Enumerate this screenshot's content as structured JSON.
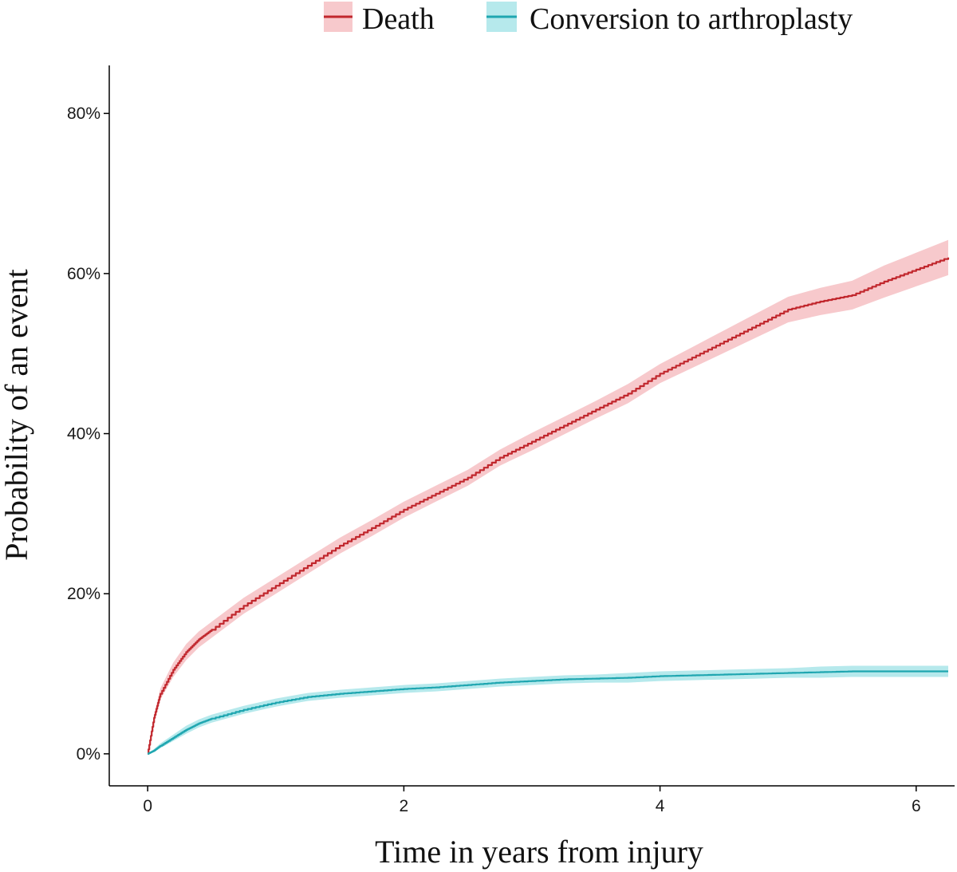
{
  "chart_data": {
    "type": "line",
    "title": "",
    "xlabel": "Time in years from injury",
    "ylabel": "Probability of an event",
    "xlim": [
      -0.3,
      6.3
    ],
    "ylim": [
      -4,
      86
    ],
    "x_ticks": [
      0,
      2,
      4,
      6
    ],
    "x_tick_labels": [
      "0",
      "2",
      "4",
      "6"
    ],
    "y_ticks": [
      0,
      20,
      40,
      60,
      80
    ],
    "y_tick_labels": [
      "0%",
      "20%",
      "40%",
      "60%",
      "80%"
    ],
    "grid": false,
    "legend_position": "top",
    "series": [
      {
        "name": "Death",
        "color": "#c1272d",
        "band_color": "#f7c9cc",
        "x": [
          0,
          0.05,
          0.1,
          0.2,
          0.3,
          0.4,
          0.5,
          0.75,
          1.0,
          1.25,
          1.5,
          1.75,
          2.0,
          2.25,
          2.5,
          2.75,
          3.0,
          3.25,
          3.5,
          3.75,
          4.0,
          4.25,
          4.5,
          4.75,
          5.0,
          5.25,
          5.5,
          5.75,
          6.0,
          6.25
        ],
        "y": [
          0,
          4.5,
          7.5,
          10.5,
          12.7,
          14.3,
          15.5,
          18.5,
          21.0,
          23.5,
          26.0,
          28.2,
          30.5,
          32.5,
          34.5,
          37.0,
          39.0,
          41.0,
          43.0,
          45.0,
          47.5,
          49.5,
          51.5,
          53.5,
          55.5,
          56.5,
          57.3,
          59.0,
          60.5,
          62.0
        ],
        "band": [
          0,
          0.5,
          0.7,
          0.9,
          1.0,
          1.0,
          1.0,
          1.0,
          1.0,
          1.0,
          1.0,
          1.0,
          1.0,
          1.0,
          1.0,
          1.0,
          1.1,
          1.1,
          1.1,
          1.2,
          1.2,
          1.3,
          1.4,
          1.5,
          1.6,
          1.7,
          1.8,
          2.0,
          2.1,
          2.2
        ]
      },
      {
        "name": "Conversion to arthroplasty",
        "color": "#1fa6b0",
        "band_color": "#b6e9ec",
        "x": [
          0,
          0.05,
          0.1,
          0.2,
          0.3,
          0.4,
          0.5,
          0.75,
          1.0,
          1.25,
          1.5,
          1.75,
          2.0,
          2.25,
          2.5,
          2.75,
          3.0,
          3.25,
          3.5,
          3.75,
          4.0,
          4.25,
          4.5,
          4.75,
          5.0,
          5.25,
          5.5,
          5.75,
          6.0,
          6.25
        ],
        "y": [
          0,
          0.4,
          1.0,
          2.0,
          3.0,
          3.8,
          4.4,
          5.5,
          6.4,
          7.1,
          7.5,
          7.8,
          8.1,
          8.3,
          8.6,
          8.9,
          9.1,
          9.3,
          9.4,
          9.5,
          9.7,
          9.8,
          9.9,
          10.0,
          10.1,
          10.2,
          10.3,
          10.3,
          10.3,
          10.3
        ],
        "band": [
          0,
          0.2,
          0.3,
          0.4,
          0.5,
          0.5,
          0.5,
          0.5,
          0.5,
          0.5,
          0.5,
          0.5,
          0.5,
          0.5,
          0.5,
          0.5,
          0.5,
          0.5,
          0.5,
          0.6,
          0.6,
          0.6,
          0.6,
          0.6,
          0.6,
          0.7,
          0.7,
          0.7,
          0.7,
          0.7
        ]
      }
    ]
  }
}
